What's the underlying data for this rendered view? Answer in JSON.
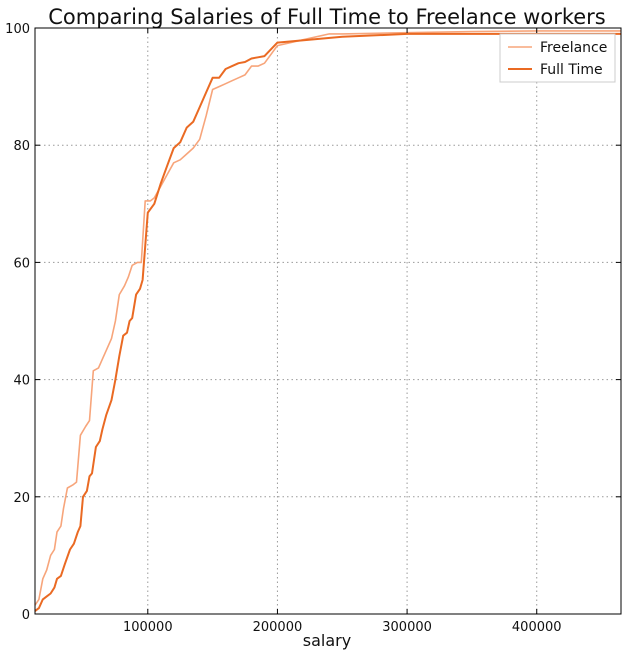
{
  "chart_data": {
    "type": "line",
    "title": "Comparing Salaries of Full Time to Freelance workers",
    "xlabel": "salary",
    "ylabel": "",
    "xlim": [
      13000,
      465000
    ],
    "ylim": [
      0,
      100
    ],
    "xticks": [
      100000,
      200000,
      300000,
      400000
    ],
    "yticks": [
      0,
      20,
      40,
      60,
      80,
      100
    ],
    "grid": true,
    "legend_position": "top-right",
    "series": [
      {
        "name": "Freelance",
        "color": "#f7a57b",
        "points": [
          [
            13000,
            1.5
          ],
          [
            16000,
            2.5
          ],
          [
            19000,
            6
          ],
          [
            22000,
            7.5
          ],
          [
            25000,
            10
          ],
          [
            28000,
            11
          ],
          [
            30000,
            14
          ],
          [
            33000,
            15
          ],
          [
            35000,
            18
          ],
          [
            38000,
            21.5
          ],
          [
            42000,
            22
          ],
          [
            45000,
            22.5
          ],
          [
            48000,
            30.5
          ],
          [
            52000,
            32
          ],
          [
            55000,
            33
          ],
          [
            58000,
            41.5
          ],
          [
            62000,
            42
          ],
          [
            65000,
            43.5
          ],
          [
            68000,
            45
          ],
          [
            72000,
            47
          ],
          [
            75000,
            50
          ],
          [
            78000,
            54.5
          ],
          [
            82000,
            56
          ],
          [
            85000,
            57.5
          ],
          [
            88000,
            59.5
          ],
          [
            92000,
            60
          ],
          [
            95000,
            60
          ],
          [
            98000,
            70.5
          ],
          [
            102000,
            70.5
          ],
          [
            105000,
            71
          ],
          [
            110000,
            73
          ],
          [
            115000,
            75
          ],
          [
            120000,
            77
          ],
          [
            125000,
            77.5
          ],
          [
            130000,
            78.5
          ],
          [
            135000,
            79.5
          ],
          [
            140000,
            81
          ],
          [
            145000,
            85
          ],
          [
            150000,
            89.5
          ],
          [
            155000,
            90
          ],
          [
            160000,
            90.5
          ],
          [
            165000,
            91
          ],
          [
            170000,
            91.5
          ],
          [
            175000,
            92
          ],
          [
            180000,
            93.5
          ],
          [
            185000,
            93.5
          ],
          [
            190000,
            94
          ],
          [
            200000,
            97
          ],
          [
            220000,
            98
          ],
          [
            240000,
            99
          ],
          [
            250000,
            99
          ],
          [
            300000,
            99.2
          ],
          [
            350000,
            99.4
          ],
          [
            400000,
            99.5
          ],
          [
            465000,
            99.5
          ]
        ]
      },
      {
        "name": "Full Time",
        "color": "#ea6a23",
        "points": [
          [
            13000,
            0.5
          ],
          [
            16000,
            1
          ],
          [
            19000,
            2.5
          ],
          [
            22000,
            3
          ],
          [
            25000,
            3.5
          ],
          [
            28000,
            4.5
          ],
          [
            30000,
            6
          ],
          [
            33000,
            6.5
          ],
          [
            36000,
            8.5
          ],
          [
            40000,
            11
          ],
          [
            43000,
            12
          ],
          [
            46000,
            14
          ],
          [
            48000,
            15
          ],
          [
            50000,
            20
          ],
          [
            53000,
            21
          ],
          [
            55000,
            23.5
          ],
          [
            57000,
            24
          ],
          [
            60000,
            28.5
          ],
          [
            63000,
            29.5
          ],
          [
            65000,
            31.5
          ],
          [
            68000,
            34
          ],
          [
            72000,
            36.5
          ],
          [
            75000,
            40
          ],
          [
            78000,
            44
          ],
          [
            81000,
            47.5
          ],
          [
            84000,
            48
          ],
          [
            86000,
            50
          ],
          [
            88000,
            50.5
          ],
          [
            91000,
            54.5
          ],
          [
            94000,
            55.5
          ],
          [
            96000,
            57
          ],
          [
            100000,
            68.5
          ],
          [
            105000,
            70
          ],
          [
            110000,
            73.5
          ],
          [
            115000,
            76.5
          ],
          [
            120000,
            79.5
          ],
          [
            125000,
            80.5
          ],
          [
            130000,
            83
          ],
          [
            135000,
            84
          ],
          [
            140000,
            86.5
          ],
          [
            145000,
            89
          ],
          [
            150000,
            91.5
          ],
          [
            155000,
            91.5
          ],
          [
            160000,
            93
          ],
          [
            165000,
            93.5
          ],
          [
            170000,
            94
          ],
          [
            175000,
            94.2
          ],
          [
            180000,
            94.8
          ],
          [
            185000,
            95
          ],
          [
            190000,
            95.2
          ],
          [
            200000,
            97.5
          ],
          [
            250000,
            98.5
          ],
          [
            300000,
            99
          ],
          [
            465000,
            99
          ]
        ]
      }
    ]
  }
}
